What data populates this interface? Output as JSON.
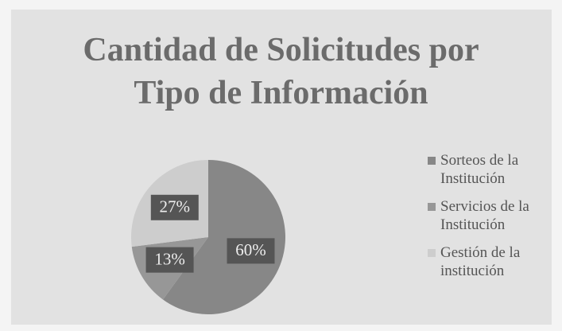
{
  "chart_data": {
    "type": "pie",
    "title": "Cantidad de Solicitudes por Tipo de Información",
    "categories": [
      "Sorteos de la Institución",
      "Servicios de la Institución",
      "Gestión de la institución"
    ],
    "values": [
      60,
      13,
      27
    ],
    "value_labels": [
      "60%",
      "13%",
      "27%"
    ],
    "colors": [
      "#878787",
      "#979797",
      "#cdcdcd"
    ],
    "legend": "right"
  }
}
